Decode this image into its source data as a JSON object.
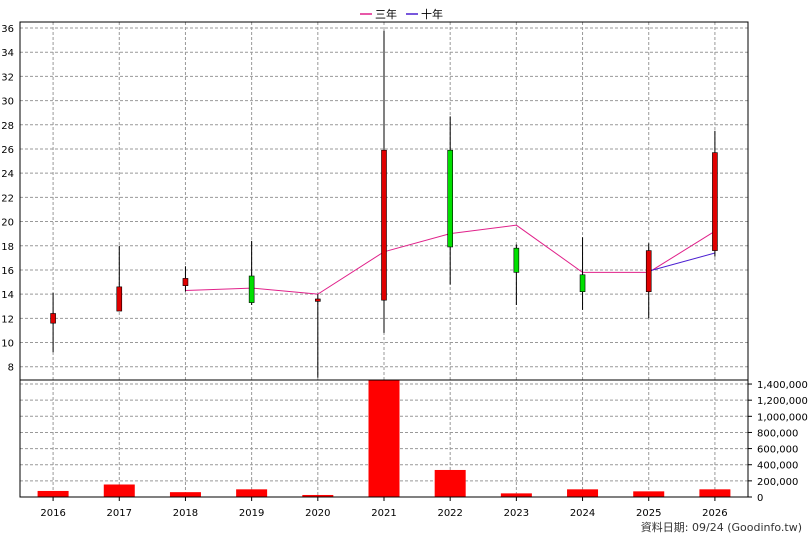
{
  "chart_data": {
    "type": "candlestick",
    "legend": {
      "placement": "top-center",
      "items": [
        {
          "name": "三年",
          "color": "#e0218a"
        },
        {
          "name": "十年",
          "color": "#4b1fd1"
        }
      ]
    },
    "grid": true,
    "categories": [
      "2016",
      "2017",
      "2018",
      "2019",
      "2020",
      "2021",
      "2022",
      "2023",
      "2024",
      "2025",
      "2026"
    ],
    "price": {
      "ylim": [
        6.9,
        36.5
      ],
      "yticks": [
        8,
        10,
        12,
        14,
        16,
        18,
        20,
        22,
        24,
        26,
        28,
        30,
        32,
        34,
        36
      ],
      "candles": [
        {
          "x": "2016",
          "open": 12.4,
          "close": 11.6,
          "high": 14.1,
          "low": 9.2
        },
        {
          "x": "2017",
          "open": 14.6,
          "close": 12.6,
          "high": 18.0,
          "low": 12.6
        },
        {
          "x": "2018",
          "open": 15.3,
          "close": 14.7,
          "high": 16.3,
          "low": 14.2
        },
        {
          "x": "2019",
          "open": 13.3,
          "close": 15.5,
          "high": 18.4,
          "low": 13.1
        },
        {
          "x": "2020",
          "open": 13.6,
          "close": 13.4,
          "high": 14.0,
          "low": 7.1
        },
        {
          "x": "2021",
          "open": 25.9,
          "close": 13.5,
          "high": 35.8,
          "low": 10.8
        },
        {
          "x": "2022",
          "open": 17.9,
          "close": 25.9,
          "high": 28.7,
          "low": 14.8
        },
        {
          "x": "2023",
          "open": 15.8,
          "close": 17.8,
          "high": 18.1,
          "low": 13.1
        },
        {
          "x": "2024",
          "open": 14.2,
          "close": 15.6,
          "high": 18.7,
          "low": 12.7
        },
        {
          "x": "2025",
          "open": 17.6,
          "close": 14.2,
          "high": 18.2,
          "low": 12.0
        },
        {
          "x": "2026",
          "open": 25.7,
          "close": 17.6,
          "high": 27.5,
          "low": 17.1
        }
      ],
      "series": [
        {
          "name": "三年",
          "color": "#e0218a",
          "points": [
            [
              "2018",
              14.3
            ],
            [
              "2019",
              14.5
            ],
            [
              "2020",
              14.0
            ],
            [
              "2021",
              17.5
            ],
            [
              "2022",
              19.0
            ],
            [
              "2023",
              19.7
            ],
            [
              "2024",
              15.8
            ],
            [
              "2025",
              15.8
            ],
            [
              "2026",
              19.2
            ]
          ]
        },
        {
          "name": "十年",
          "color": "#4b1fd1",
          "points": [
            [
              "2025",
              15.9
            ],
            [
              "2026",
              17.4
            ]
          ]
        }
      ]
    },
    "volume": {
      "ylim": [
        0,
        1450000
      ],
      "yticks": [
        0,
        200000,
        400000,
        600000,
        800000,
        1000000,
        1200000,
        1400000
      ],
      "ytick_labels": [
        "0",
        "200,000",
        "400,000",
        "600,000",
        "800,000",
        "1,000,000",
        "1,200,000",
        "1,400,000"
      ],
      "values": [
        75000,
        155000,
        60000,
        95000,
        25000,
        1450000,
        335000,
        45000,
        95000,
        70000,
        95000
      ],
      "color": "#ff0000"
    }
  },
  "footer": "資料日期: 09/24  (Goodinfo.tw)"
}
